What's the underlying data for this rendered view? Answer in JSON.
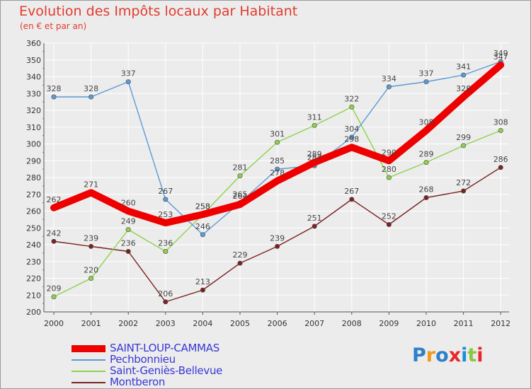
{
  "header": {
    "title": "Evolution des Impôts locaux par Habitant",
    "subtitle": "(en € et par an)"
  },
  "logo": {
    "text": "Proxiti",
    "colors": [
      "#2e7fc8",
      "#f09a1a",
      "#2e7fc8",
      "#e8262b",
      "#1a8fd6",
      "#8cc63f",
      "#e8262b"
    ]
  },
  "chart_data": {
    "type": "line",
    "x": [
      "2000",
      "2001",
      "2002",
      "2003",
      "2004",
      "2005",
      "2006",
      "2007",
      "2008",
      "2009",
      "2010",
      "2011",
      "2012"
    ],
    "ylim": [
      200,
      360
    ],
    "yticks": [
      200,
      210,
      220,
      230,
      240,
      250,
      260,
      270,
      280,
      290,
      300,
      310,
      320,
      330,
      340,
      350,
      360
    ],
    "grid": true,
    "legend_position": "bottom-left",
    "series": [
      {
        "name": "Montberon",
        "color": "#7a2222",
        "values": [
          242,
          239,
          236,
          206,
          213,
          229,
          239,
          251,
          267,
          252,
          268,
          272,
          286
        ]
      },
      {
        "name": "Saint-Geniès-Bellevue",
        "color": "#8ed14b",
        "values": [
          209,
          220,
          249,
          236,
          258,
          281,
          301,
          311,
          322,
          280,
          289,
          299,
          308
        ]
      },
      {
        "name": "Pechbonnieu",
        "color": "#5b9bd5",
        "values": [
          328,
          328,
          337,
          267,
          246,
          265,
          285,
          287,
          304,
          334,
          337,
          341,
          349
        ]
      },
      {
        "name": "SAINT-LOUP-CAMMAS",
        "color": "#ee0000",
        "values": [
          262,
          271,
          260,
          253,
          258,
          264,
          278,
          289,
          298,
          290,
          308,
          328,
          347
        ]
      }
    ]
  },
  "legend": [
    {
      "label": "SAINT-LOUP-CAMMAS",
      "color": "#ee0000",
      "thickness": 10
    },
    {
      "label": "Pechbonnieu",
      "color": "#5b9bd5",
      "thickness": 2
    },
    {
      "label": "Saint-Geniès-Bellevue",
      "color": "#8ed14b",
      "thickness": 2
    },
    {
      "label": "Montberon",
      "color": "#7a2222",
      "thickness": 2
    }
  ]
}
